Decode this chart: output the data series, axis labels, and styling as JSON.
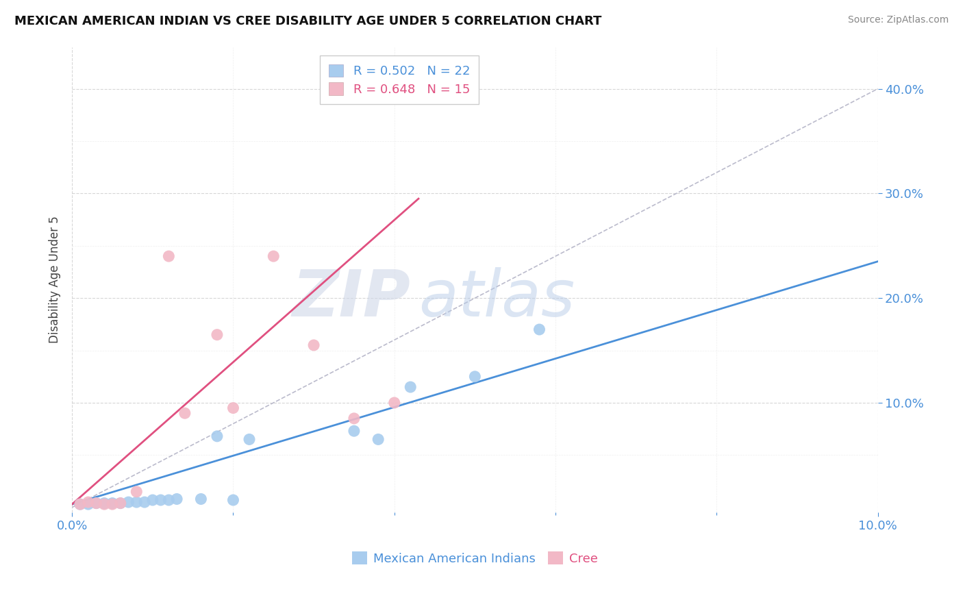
{
  "title": "MEXICAN AMERICAN INDIAN VS CREE DISABILITY AGE UNDER 5 CORRELATION CHART",
  "source": "Source: ZipAtlas.com",
  "ylabel": "Disability Age Under 5",
  "xlim": [
    0.0,
    0.1
  ],
  "ylim": [
    -0.005,
    0.44
  ],
  "blue_label": "Mexican American Indians",
  "pink_label": "Cree",
  "blue_R": "R = 0.502",
  "blue_N": "N = 22",
  "pink_R": "R = 0.648",
  "pink_N": "N = 15",
  "blue_color": "#A8CCEE",
  "pink_color": "#F2B8C6",
  "blue_line_color": "#4A90D9",
  "pink_line_color": "#E05080",
  "diagonal_color": "#BBBBCC",
  "watermark_zip": "ZIP",
  "watermark_atlas": "atlas",
  "background_color": "#ffffff",
  "blue_points_x": [
    0.001,
    0.002,
    0.003,
    0.004,
    0.005,
    0.006,
    0.007,
    0.008,
    0.009,
    0.01,
    0.011,
    0.012,
    0.013,
    0.016,
    0.018,
    0.02,
    0.022,
    0.035,
    0.038,
    0.042,
    0.05,
    0.058
  ],
  "blue_points_y": [
    0.003,
    0.003,
    0.004,
    0.004,
    0.004,
    0.004,
    0.005,
    0.005,
    0.005,
    0.007,
    0.007,
    0.007,
    0.008,
    0.008,
    0.068,
    0.007,
    0.065,
    0.073,
    0.065,
    0.115,
    0.125,
    0.17
  ],
  "pink_points_x": [
    0.001,
    0.002,
    0.003,
    0.004,
    0.005,
    0.006,
    0.008,
    0.012,
    0.014,
    0.018,
    0.02,
    0.025,
    0.03,
    0.035,
    0.04
  ],
  "pink_points_y": [
    0.003,
    0.005,
    0.004,
    0.003,
    0.003,
    0.004,
    0.015,
    0.24,
    0.09,
    0.165,
    0.095,
    0.24,
    0.155,
    0.085,
    0.1
  ],
  "blue_scatter_size": 150,
  "pink_scatter_size": 150,
  "blue_line_x": [
    0.0,
    0.1
  ],
  "blue_line_y": [
    0.003,
    0.235
  ],
  "pink_line_x": [
    0.0,
    0.043
  ],
  "pink_line_y": [
    0.003,
    0.295
  ],
  "diagonal_line_x": [
    0.0,
    0.1
  ],
  "diagonal_line_y": [
    0.0,
    0.4
  ],
  "ytick_vals": [
    0.1,
    0.2,
    0.3,
    0.4
  ],
  "xtick_vals": [
    0.0,
    0.1
  ],
  "minor_xticks": [
    0.02,
    0.04,
    0.06,
    0.08
  ],
  "minor_yticks": [
    0.05,
    0.15,
    0.25,
    0.35
  ]
}
